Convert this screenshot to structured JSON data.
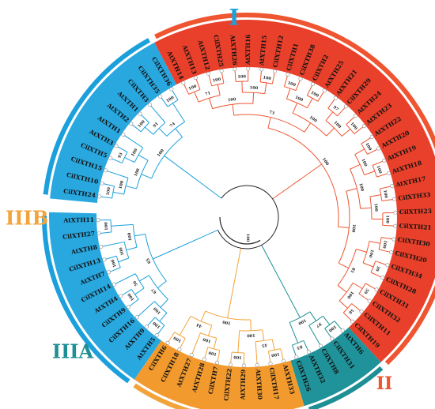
{
  "clades": [
    {
      "id": "I",
      "label": "I",
      "color": "#1ba0dc",
      "clade_color": "#29a8e0"
    },
    {
      "id": "II",
      "label": "II",
      "color": "#ee5530",
      "clade_color": "#e8402a"
    },
    {
      "id": "IIIA",
      "label": "IIIA",
      "color": "#1e8f95",
      "clade_color": "#20939a"
    },
    {
      "id": "IIIB",
      "label": "IIIB",
      "color": "#f2a33a",
      "clade_color": "#f29a2e"
    }
  ],
  "leaves": [
    {
      "name": "CilXTH24",
      "clade": "I"
    },
    {
      "name": "CilXTH10",
      "clade": "I"
    },
    {
      "name": "CilXTH15",
      "clade": "I"
    },
    {
      "name": "CilXTH5",
      "clade": "I"
    },
    {
      "name": "AtXTH3",
      "clade": "I"
    },
    {
      "name": "AtXTH1",
      "clade": "I"
    },
    {
      "name": "AtXTH2",
      "clade": "I"
    },
    {
      "name": "AtXTH1",
      "clade": "I"
    },
    {
      "name": "CilXTH3",
      "clade": "I"
    },
    {
      "name": "CilXTH35",
      "clade": "I"
    },
    {
      "name": "CilXTH36",
      "clade": "I"
    },
    {
      "name": "AtXTH14",
      "clade": "II"
    },
    {
      "name": "AtXTH13",
      "clade": "II"
    },
    {
      "name": "AtXTH12",
      "clade": "II"
    },
    {
      "name": "CilXTH25",
      "clade": "II"
    },
    {
      "name": "AtXTH26",
      "clade": "II"
    },
    {
      "name": "AtXTH16",
      "clade": "II"
    },
    {
      "name": "AtXTH15",
      "clade": "II"
    },
    {
      "name": "CilXTH12",
      "clade": "II"
    },
    {
      "name": "CilXTH1",
      "clade": "II"
    },
    {
      "name": "CilXTH38",
      "clade": "II"
    },
    {
      "name": "CilXTH2",
      "clade": "II"
    },
    {
      "name": "AtXTH25",
      "clade": "II"
    },
    {
      "name": "AtXTH21",
      "clade": "II"
    },
    {
      "name": "CilXTH29",
      "clade": "II"
    },
    {
      "name": "AtXTH24",
      "clade": "II"
    },
    {
      "name": "AtXTH23",
      "clade": "II"
    },
    {
      "name": "AtXTH22",
      "clade": "II"
    },
    {
      "name": "AtXTH20",
      "clade": "II"
    },
    {
      "name": "AtXTH19",
      "clade": "II"
    },
    {
      "name": "AtXTH18",
      "clade": "II"
    },
    {
      "name": "AtXTH17",
      "clade": "II"
    },
    {
      "name": "CilXTH33",
      "clade": "II"
    },
    {
      "name": "CilXTH23",
      "clade": "II"
    },
    {
      "name": "CilXTH21",
      "clade": "II"
    },
    {
      "name": "CilXTH30",
      "clade": "II"
    },
    {
      "name": "CilXTH20",
      "clade": "II"
    },
    {
      "name": "CilXTH34",
      "clade": "II"
    },
    {
      "name": "CilXTH28",
      "clade": "II"
    },
    {
      "name": "CilXTH31",
      "clade": "II"
    },
    {
      "name": "CilXTH32",
      "clade": "II"
    },
    {
      "name": "CilXTH11",
      "clade": "II"
    },
    {
      "name": "CilXTH19",
      "clade": "II"
    },
    {
      "name": "AtXTH6",
      "clade": "IIIA"
    },
    {
      "name": "CilXTH31",
      "clade": "IIIA"
    },
    {
      "name": "CilXTH8",
      "clade": "IIIA"
    },
    {
      "name": "AtXTH32",
      "clade": "IIIA"
    },
    {
      "name": "CilXTH26",
      "clade": "IIIA"
    },
    {
      "name": "AtXTH33",
      "clade": "IIIB"
    },
    {
      "name": "CilXTH17",
      "clade": "IIIB"
    },
    {
      "name": "AtXTH30",
      "clade": "IIIB"
    },
    {
      "name": "AtXTH29",
      "clade": "IIIB"
    },
    {
      "name": "CilXTH22",
      "clade": "IIIB"
    },
    {
      "name": "CilXTH7",
      "clade": "IIIB"
    },
    {
      "name": "AtXTH28",
      "clade": "IIIB"
    },
    {
      "name": "AtXTH27",
      "clade": "IIIB"
    },
    {
      "name": "CilXTH18",
      "clade": "IIIB"
    },
    {
      "name": "CilXTH6",
      "clade": "IIIB"
    },
    {
      "name": "AtXTH5",
      "clade": "I"
    },
    {
      "name": "AtXTH9",
      "clade": "I"
    },
    {
      "name": "CilXTH16",
      "clade": "I"
    },
    {
      "name": "CilXTH9",
      "clade": "I"
    },
    {
      "name": "AtXTH4",
      "clade": "I"
    },
    {
      "name": "CilXTH14",
      "clade": "I"
    },
    {
      "name": "AtXTH7",
      "clade": "I"
    },
    {
      "name": "CilXTH13",
      "clade": "I"
    },
    {
      "name": "AtXTH8",
      "clade": "I"
    },
    {
      "name": "CilXTH27",
      "clade": "I"
    },
    {
      "name": "AtXTH11",
      "clade": "I"
    }
  ],
  "bootstrap_values": [
    "100",
    "100",
    "93",
    "100",
    "100",
    "100",
    "91",
    "100",
    "74",
    "100",
    "100",
    "100",
    "71",
    "100",
    "100",
    "100",
    "100",
    "100",
    "100",
    "100",
    "97",
    "100",
    "100",
    "100",
    "73",
    "100",
    "100",
    "100",
    "100",
    "100",
    "100",
    "100",
    "100",
    "39",
    "100",
    "59",
    "56",
    "100",
    "81",
    "100",
    "100",
    "100",
    "97",
    "83",
    "100",
    "100",
    "45",
    "100",
    "100",
    "100",
    "100",
    "100",
    "44",
    "100",
    "100",
    "100",
    "100",
    "56",
    "67",
    "100",
    "100",
    "100",
    "100",
    "65",
    "52",
    "100",
    "100",
    "100",
    "52",
    "100",
    "100",
    "100",
    "100",
    "100",
    "98",
    "100",
    "100",
    "100",
    "100",
    "100",
    "100",
    "100",
    "100",
    "100",
    "100",
    "100",
    "31",
    "83",
    "100"
  ],
  "root_label": "100"
}
